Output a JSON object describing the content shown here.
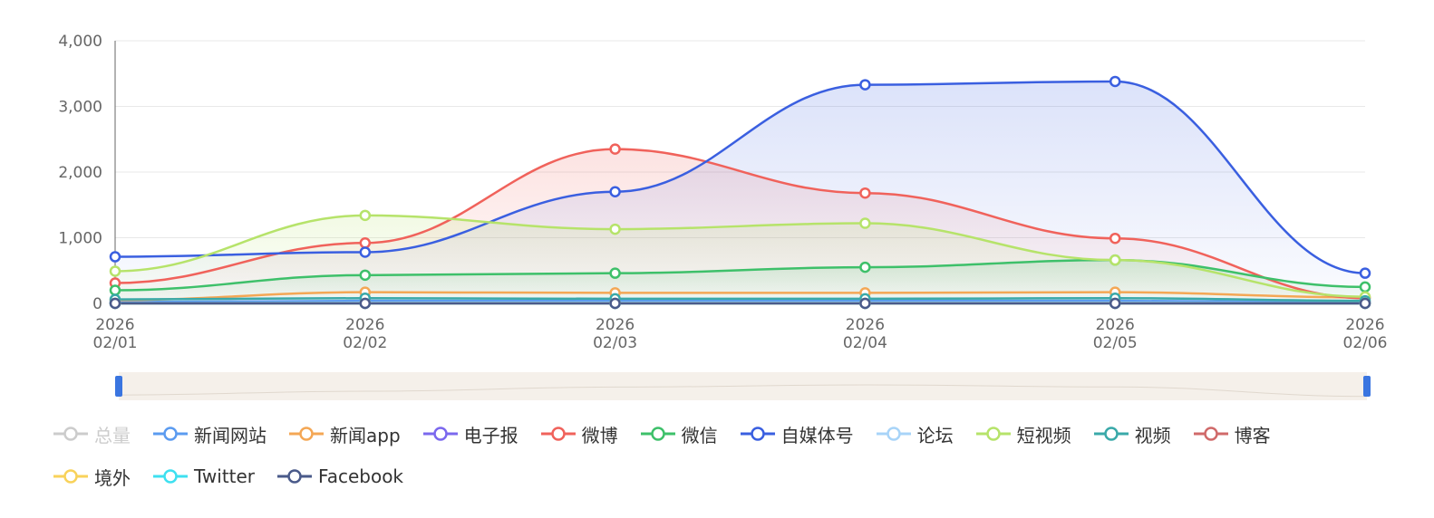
{
  "chart_data": {
    "type": "area",
    "title": "",
    "xlabel": "",
    "ylabel": "",
    "ylim": [
      0,
      4000
    ],
    "yticks": [
      "0",
      "1,000",
      "2,000",
      "3,000",
      "4,000"
    ],
    "ytick_values": [
      0,
      1000,
      2000,
      3000,
      4000
    ],
    "categories": [
      {
        "year": "2026",
        "date": "02/01"
      },
      {
        "year": "2026",
        "date": "02/02"
      },
      {
        "year": "2026",
        "date": "02/03"
      },
      {
        "year": "2026",
        "date": "02/04"
      },
      {
        "year": "2026",
        "date": "02/05"
      },
      {
        "year": "2026",
        "date": "02/06"
      }
    ],
    "grid": true,
    "legend_position": "bottom-left",
    "series": [
      {
        "name": "总量",
        "color": "#cccccc",
        "enabled": false,
        "area": false,
        "values": [
          null,
          null,
          null,
          null,
          null,
          null
        ]
      },
      {
        "name": "新闻网站",
        "color": "#5b9bf0",
        "enabled": true,
        "area": false,
        "values": [
          20,
          40,
          40,
          40,
          40,
          20
        ]
      },
      {
        "name": "新闻app",
        "color": "#f4a755",
        "enabled": true,
        "area": false,
        "values": [
          50,
          170,
          160,
          160,
          170,
          90
        ]
      },
      {
        "name": "电子报",
        "color": "#7b68ee",
        "enabled": true,
        "area": false,
        "values": [
          0,
          0,
          0,
          0,
          0,
          0
        ]
      },
      {
        "name": "微博",
        "color": "#f0625b",
        "enabled": true,
        "area": true,
        "values": [
          310,
          920,
          2350,
          1680,
          990,
          80
        ]
      },
      {
        "name": "微信",
        "color": "#3ec06a",
        "enabled": true,
        "area": true,
        "values": [
          200,
          430,
          460,
          550,
          660,
          250
        ]
      },
      {
        "name": "自媒体号",
        "color": "#3a5fe0",
        "enabled": true,
        "area": true,
        "values": [
          710,
          780,
          1700,
          3330,
          3380,
          460
        ]
      },
      {
        "name": "论坛",
        "color": "#a8d4f8",
        "enabled": true,
        "area": false,
        "values": [
          0,
          10,
          10,
          10,
          10,
          0
        ]
      },
      {
        "name": "短视频",
        "color": "#b6e36a",
        "enabled": true,
        "area": true,
        "values": [
          490,
          1340,
          1130,
          1220,
          660,
          100
        ]
      },
      {
        "name": "视频",
        "color": "#3aa9a9",
        "enabled": true,
        "area": false,
        "values": [
          60,
          80,
          70,
          70,
          80,
          40
        ]
      },
      {
        "name": "博客",
        "color": "#d06a6a",
        "enabled": true,
        "area": false,
        "values": [
          0,
          0,
          0,
          0,
          0,
          0
        ]
      },
      {
        "name": "境外",
        "color": "#f8d25a",
        "enabled": true,
        "area": false,
        "values": [
          0,
          0,
          0,
          0,
          0,
          0
        ]
      },
      {
        "name": "Twitter",
        "color": "#3ee0f0",
        "enabled": true,
        "area": false,
        "values": [
          0,
          0,
          0,
          0,
          0,
          0
        ]
      },
      {
        "name": "Facebook",
        "color": "#4a5a8a",
        "enabled": true,
        "area": false,
        "values": [
          0,
          0,
          0,
          0,
          0,
          0
        ]
      }
    ],
    "data_zoom": {
      "range": [
        0,
        100
      ]
    }
  }
}
